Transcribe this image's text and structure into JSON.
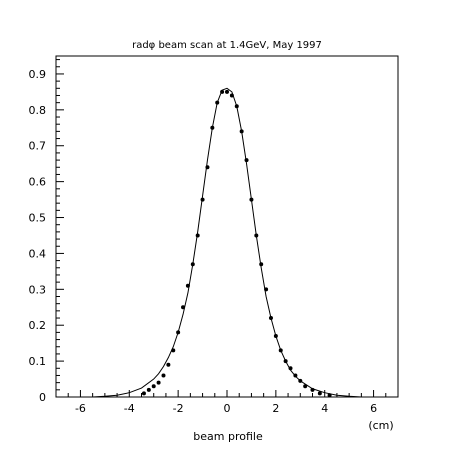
{
  "chart_data": {
    "type": "scatter",
    "title": "radφ beam scan at 1.4GeV, May 1997",
    "xlabel": "beam profile",
    "x_unit": "(cm)",
    "ylabel": "",
    "xlim": [
      -7,
      7
    ],
    "ylim": [
      0,
      0.95
    ],
    "x_ticks": [
      -6,
      -4,
      -2,
      0,
      2,
      4,
      6
    ],
    "x_tick_labels": [
      "-6",
      "-4",
      "-2",
      "0",
      "2",
      "4",
      "6"
    ],
    "y_ticks": [
      0,
      0.1,
      0.2,
      0.3,
      0.4,
      0.5,
      0.6,
      0.7,
      0.8,
      0.9
    ],
    "y_tick_labels": [
      "0",
      "0.1",
      "0.2",
      "0.3",
      "0.4",
      "0.5",
      "0.6",
      "0.7",
      "0.8",
      "0.9"
    ],
    "grid": false,
    "series": [
      {
        "kind": "points",
        "x": [
          -3.4,
          -3.2,
          -3.0,
          -2.8,
          -2.6,
          -2.4,
          -2.2,
          -2.0,
          -1.8,
          -1.6,
          -1.4,
          -1.2,
          -1.0,
          -0.8,
          -0.6,
          -0.4,
          -0.2,
          0.0,
          0.2,
          0.4,
          0.6,
          0.8,
          1.0,
          1.2,
          1.4,
          1.6,
          1.8,
          2.0,
          2.2,
          2.4,
          2.6,
          2.8,
          3.0,
          3.2,
          3.5,
          3.8,
          4.2
        ],
        "y": [
          0.01,
          0.02,
          0.03,
          0.04,
          0.06,
          0.09,
          0.13,
          0.18,
          0.25,
          0.31,
          0.37,
          0.45,
          0.55,
          0.64,
          0.75,
          0.82,
          0.85,
          0.85,
          0.84,
          0.81,
          0.74,
          0.66,
          0.55,
          0.45,
          0.37,
          0.3,
          0.22,
          0.17,
          0.13,
          0.1,
          0.08,
          0.06,
          0.045,
          0.03,
          0.02,
          0.01,
          0.005
        ]
      },
      {
        "kind": "fit-curve",
        "x": [
          -6.0,
          -5.5,
          -5.0,
          -4.5,
          -4.0,
          -3.5,
          -3.0,
          -2.8,
          -2.6,
          -2.4,
          -2.2,
          -2.0,
          -1.8,
          -1.6,
          -1.4,
          -1.2,
          -1.0,
          -0.8,
          -0.6,
          -0.4,
          -0.2,
          0.0,
          0.2,
          0.4,
          0.6,
          0.8,
          1.0,
          1.2,
          1.4,
          1.6,
          1.8,
          2.0,
          2.2,
          2.4,
          2.6,
          2.8,
          3.0,
          3.5,
          4.0,
          4.5,
          5.0,
          5.5
        ],
        "y": [
          0.0,
          0.0,
          0.002,
          0.005,
          0.012,
          0.025,
          0.05,
          0.065,
          0.085,
          0.11,
          0.14,
          0.18,
          0.23,
          0.29,
          0.37,
          0.46,
          0.56,
          0.66,
          0.75,
          0.82,
          0.855,
          0.86,
          0.85,
          0.81,
          0.74,
          0.65,
          0.55,
          0.45,
          0.36,
          0.28,
          0.22,
          0.17,
          0.13,
          0.1,
          0.075,
          0.058,
          0.045,
          0.023,
          0.012,
          0.005,
          0.002,
          0.0
        ]
      }
    ]
  }
}
